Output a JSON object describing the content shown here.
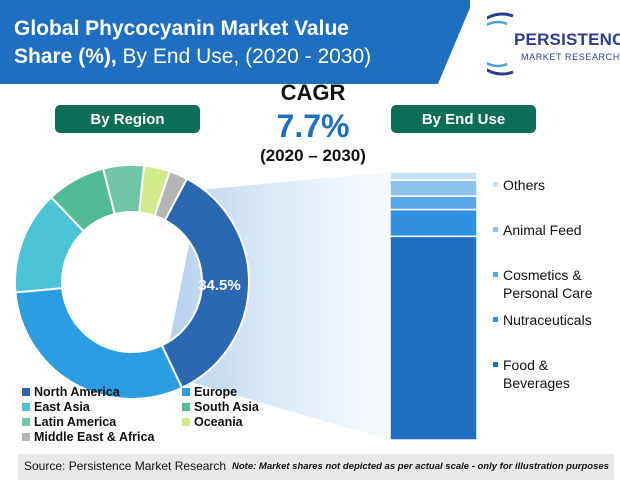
{
  "header": {
    "title_line1": "Global Phycocyanin Market Value",
    "title_line2_bold": "Share (%),",
    "title_line2_rest": " By End Use, (2020 - 2030)",
    "banner_color": "#1f6fc0"
  },
  "logo": {
    "name": "PERSISTENCE",
    "tagline": "MARKET RESEARCH",
    "color": "#2f3b8f"
  },
  "cagr": {
    "label": "CAGR",
    "value": "7.7%",
    "period": "(2020 – 2030)"
  },
  "sections": {
    "region_label": "By Region",
    "enduse_label": "By End Use",
    "pill_color": "#0b6e55"
  },
  "chart_data": [
    {
      "type": "pie",
      "title": "By Region",
      "categories": [
        "North America",
        "Europe",
        "East Asia",
        "South Asia",
        "Latin America",
        "Oceania",
        "Middle East & Africa"
      ],
      "values": [
        34.5,
        30.0,
        14.0,
        8.0,
        5.5,
        3.5,
        2.5
      ],
      "colors": [
        "#2b68b1",
        "#2b9ee1",
        "#4cc3d6",
        "#52bb95",
        "#6fc6a7",
        "#d2ea8a",
        "#b5b5b5"
      ],
      "data_labels": [
        "34.5%",
        "",
        "",
        "",
        "",
        "",
        ""
      ],
      "legend_placement": "bottom"
    },
    {
      "type": "bar",
      "stacked": true,
      "title": "By End Use",
      "categories": [
        "Food & Beverages",
        "Nutraceuticals",
        "Cosmetics & Personal Care",
        "Animal Feed",
        "Others"
      ],
      "values": [
        76,
        10,
        5,
        6,
        3
      ],
      "colors": [
        "#1f6fc0",
        "#2f8fe0",
        "#5aa8e6",
        "#8cc4ee",
        "#c7e1f6"
      ],
      "legend_placement": "right"
    }
  ],
  "enduse_labels": [
    {
      "lines": [
        "Others"
      ]
    },
    {
      "lines": [
        "Animal Feed"
      ]
    },
    {
      "lines": [
        "Cosmetics &",
        "Personal Care"
      ]
    },
    {
      "lines": [
        "Nutraceuticals"
      ]
    },
    {
      "lines": [
        "Food &",
        "Beverages"
      ]
    }
  ],
  "footer": {
    "source": "Source: Persistence Market Research",
    "note": "Note: Market shares not depicted as per actual scale - only for illustration purposes"
  }
}
